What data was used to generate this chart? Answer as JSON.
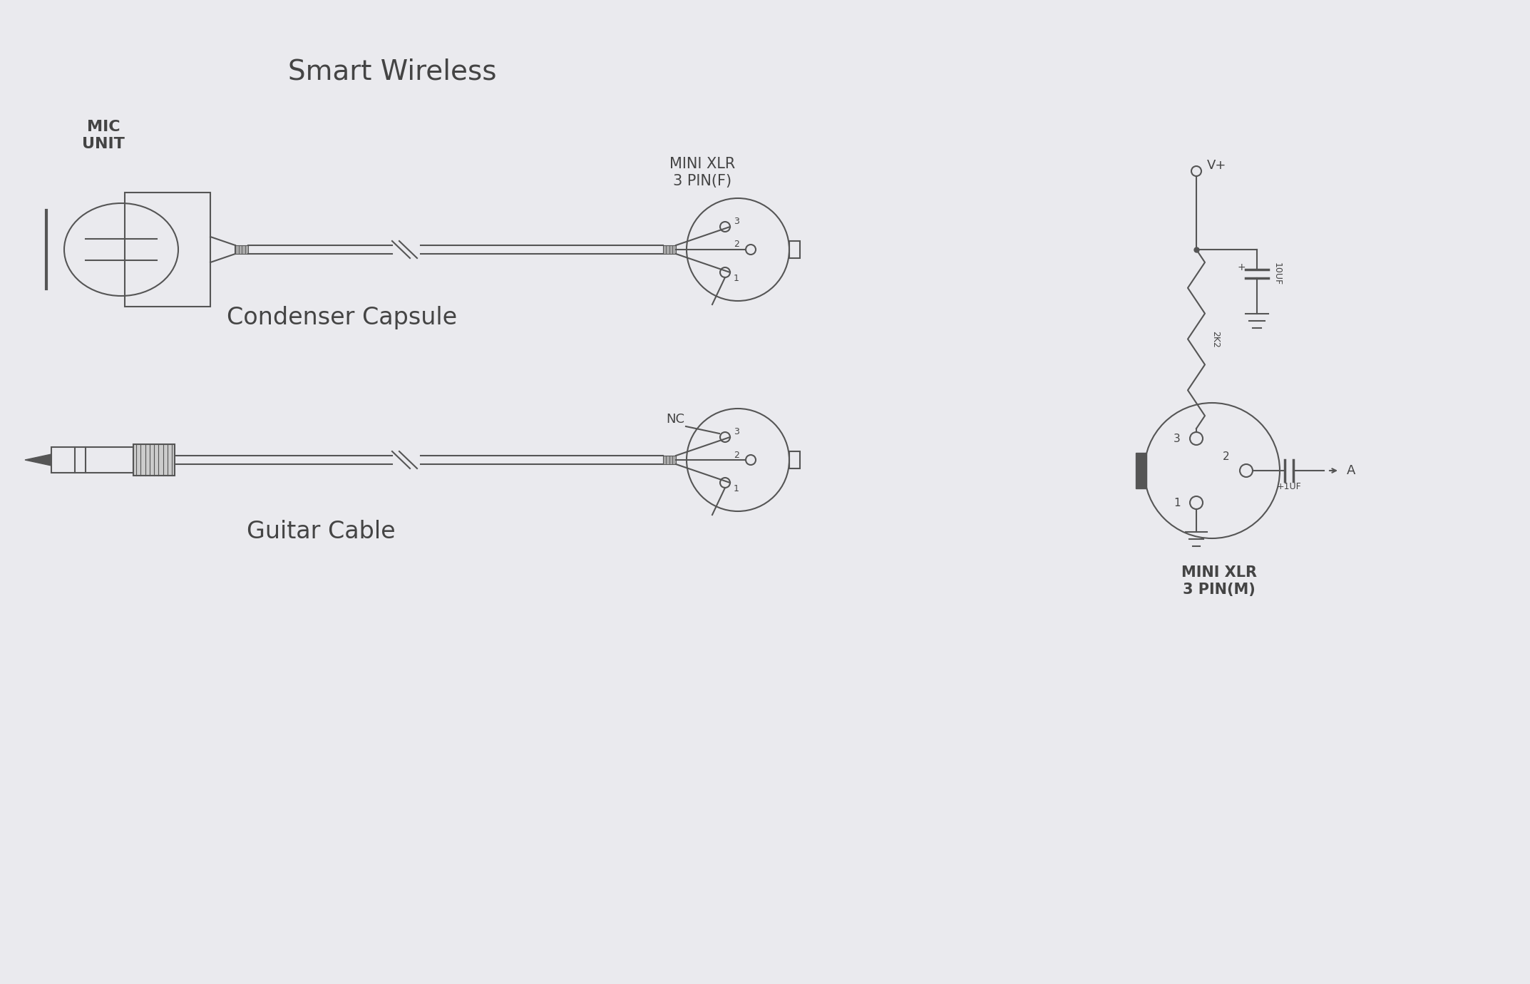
{
  "title": "Smart Wireless",
  "bg_color": "#eaeaee",
  "line_color": "#555555",
  "text_color": "#444444",
  "mic_unit_label": "MIC\nUNIT",
  "condenser_label": "Condenser Capsule",
  "mini_xlr_f_label": "MINI XLR\n3 PIN(F)",
  "mini_xlr_m_label": "MINI XLR\n3 PIN(M)",
  "guitar_label": "Guitar Cable",
  "nc_label": "NC",
  "vplus_label": "V+",
  "r_label": "2K2",
  "c1_label": "10UF",
  "c2_label": "+1UF",
  "a_label": "A"
}
